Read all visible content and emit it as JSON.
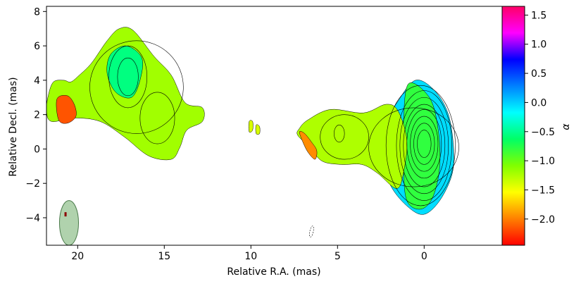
{
  "chart_data": {
    "type": "heatmap",
    "title": "",
    "xlabel": "Relative R.A. (mas)",
    "ylabel": "Relative Decl. (mas)",
    "colorbar_label": "α",
    "xlim": [
      21.8,
      -4.5
    ],
    "ylim": [
      -5.6,
      8.3
    ],
    "x_ticks": [
      20,
      15,
      10,
      5,
      0
    ],
    "y_ticks": [
      8,
      6,
      4,
      2,
      0,
      -2,
      -4
    ],
    "colorbar_range": [
      -2.45,
      1.65
    ],
    "colorbar_ticks": [
      1.5,
      1.0,
      0.5,
      0.0,
      -0.5,
      -1.0,
      -1.5,
      -2.0
    ],
    "colormap": [
      "#ff0000",
      "#ff8000",
      "#ffff00",
      "#80ff00",
      "#00ff66",
      "#00ffff",
      "#0080ff",
      "#0000ff",
      "#ff00ff",
      "#ff0066"
    ],
    "regions": [
      {
        "name": "core",
        "alpha": -0.05,
        "outline": [
          [
            0.5,
            4.0
          ],
          [
            -0.6,
            3.4
          ],
          [
            -1.4,
            2.0
          ],
          [
            -1.7,
            0.0
          ],
          [
            -1.6,
            -1.5
          ],
          [
            -0.9,
            -3.0
          ],
          [
            0.0,
            -3.8
          ],
          [
            0.9,
            -3.4
          ],
          [
            1.9,
            -2.2
          ],
          [
            2.5,
            -0.5
          ],
          [
            2.3,
            1.3
          ],
          [
            1.5,
            2.8
          ]
        ]
      },
      {
        "name": "core-transition",
        "alpha": -0.8,
        "outline": [
          [
            0.9,
            3.8
          ],
          [
            -0.3,
            3.0
          ],
          [
            -0.8,
            1.2
          ],
          [
            -0.9,
            -1.0
          ],
          [
            -0.5,
            -2.8
          ],
          [
            0.2,
            -3.5
          ],
          [
            1.0,
            -3.0
          ],
          [
            1.2,
            -1.0
          ],
          [
            1.2,
            1.5
          ]
        ]
      },
      {
        "name": "inner-jet",
        "alpha": -1.25,
        "outline": [
          [
            7.2,
            1.2
          ],
          [
            6.7,
            1.7
          ],
          [
            5.4,
            2.3
          ],
          [
            3.5,
            2.1
          ],
          [
            2.2,
            2.6
          ],
          [
            1.5,
            2.2
          ],
          [
            1.0,
            0.5
          ],
          [
            1.2,
            -1.4
          ],
          [
            1.6,
            -2.3
          ],
          [
            2.7,
            -1.4
          ],
          [
            3.6,
            -0.9
          ],
          [
            4.8,
            -0.9
          ],
          [
            5.9,
            -0.7
          ],
          [
            6.6,
            0.1
          ],
          [
            7.3,
            0.8
          ]
        ]
      },
      {
        "name": "inner-jet-steep-edge",
        "alpha": -1.95,
        "outline": [
          [
            7.2,
            1.0
          ],
          [
            7.0,
            0.4
          ],
          [
            6.7,
            -0.2
          ],
          [
            6.3,
            -0.6
          ],
          [
            6.2,
            -0.1
          ],
          [
            6.5,
            0.4
          ],
          [
            6.9,
            0.9
          ]
        ]
      },
      {
        "name": "outer-lobe",
        "alpha": -1.2,
        "outline": [
          [
            21.7,
            3.1
          ],
          [
            21.4,
            3.9
          ],
          [
            20.8,
            4.0
          ],
          [
            20.4,
            3.9
          ],
          [
            19.9,
            4.3
          ],
          [
            19.2,
            5.0
          ],
          [
            18.3,
            6.3
          ],
          [
            17.6,
            7.0
          ],
          [
            16.8,
            6.9
          ],
          [
            15.6,
            5.4
          ],
          [
            14.6,
            4.3
          ],
          [
            13.8,
            2.7
          ],
          [
            12.8,
            2.4
          ],
          [
            12.8,
            1.6
          ],
          [
            13.7,
            1.1
          ],
          [
            14.1,
            0.1
          ],
          [
            14.6,
            -0.6
          ],
          [
            15.9,
            -0.4
          ],
          [
            17.3,
            0.7
          ],
          [
            18.7,
            1.6
          ],
          [
            20.2,
            1.8
          ],
          [
            21.5,
            1.6
          ],
          [
            21.8,
            2.2
          ]
        ]
      },
      {
        "name": "outer-lobe-bright",
        "alpha": -0.55,
        "outline": [
          [
            18.1,
            5.5
          ],
          [
            17.2,
            6.0
          ],
          [
            16.3,
            5.3
          ],
          [
            16.4,
            4.0
          ],
          [
            16.9,
            3.0
          ],
          [
            17.8,
            3.3
          ],
          [
            18.3,
            4.4
          ]
        ]
      },
      {
        "name": "outer-lobe-steep-edge",
        "alpha": -2.15,
        "outline": [
          [
            21.2,
            2.9
          ],
          [
            20.6,
            3.1
          ],
          [
            20.2,
            2.6
          ],
          [
            20.1,
            1.9
          ],
          [
            20.6,
            1.5
          ],
          [
            21.1,
            1.7
          ]
        ]
      },
      {
        "name": "gap-blob-a",
        "alpha": -1.4,
        "outline": [
          [
            10.1,
            1.6
          ],
          [
            9.9,
            1.6
          ],
          [
            9.9,
            1.1
          ],
          [
            10.1,
            1.0
          ]
        ]
      },
      {
        "name": "gap-blob-b",
        "alpha": -1.4,
        "outline": [
          [
            9.7,
            1.4
          ],
          [
            9.5,
            1.3
          ],
          [
            9.5,
            0.9
          ],
          [
            9.7,
            0.9
          ]
        ]
      }
    ],
    "contours": [
      {
        "cx": 0.0,
        "cy": 0.3,
        "rx": 0.4,
        "ry": 0.8
      },
      {
        "cx": 0.0,
        "cy": 0.3,
        "rx": 0.6,
        "ry": 1.2
      },
      {
        "cx": 0.0,
        "cy": 0.3,
        "rx": 0.8,
        "ry": 1.6
      },
      {
        "cx": 0.0,
        "cy": 0.3,
        "rx": 1.0,
        "ry": 2.0
      },
      {
        "cx": 0.0,
        "cy": 0.2,
        "rx": 1.2,
        "ry": 2.4
      },
      {
        "cx": 0.0,
        "cy": 0.2,
        "rx": 1.4,
        "ry": 2.8
      },
      {
        "cx": 0.0,
        "cy": 0.2,
        "rx": 1.6,
        "ry": 3.2
      },
      {
        "cx": 0.2,
        "cy": 0.2,
        "rx": 2.0,
        "ry": 3.5
      },
      {
        "cx": 0.6,
        "cy": 0.1,
        "rx": 2.6,
        "ry": 2.3
      },
      {
        "cx": 4.9,
        "cy": 0.9,
        "rx": 0.3,
        "ry": 0.5
      },
      {
        "cx": 4.6,
        "cy": 0.7,
        "rx": 1.4,
        "ry": 1.3
      },
      {
        "cx": 17.1,
        "cy": 4.2,
        "rx": 0.6,
        "ry": 1.1
      },
      {
        "cx": 17.1,
        "cy": 4.2,
        "rx": 1.1,
        "ry": 1.8
      },
      {
        "cx": 15.4,
        "cy": 1.8,
        "rx": 1.0,
        "ry": 1.5
      },
      {
        "cx": 16.6,
        "cy": 3.6,
        "rx": 2.7,
        "ry": 2.7
      }
    ],
    "beam": {
      "x": 20.5,
      "y": -4.3,
      "width_mas": 1.1,
      "height_mas": 2.6,
      "color": "#8fbf8a"
    },
    "beam_marker": {
      "x": 20.7,
      "y": -3.8,
      "color": "#8b0000"
    },
    "noise_contour": {
      "x": 6.5,
      "y": -4.8
    }
  }
}
